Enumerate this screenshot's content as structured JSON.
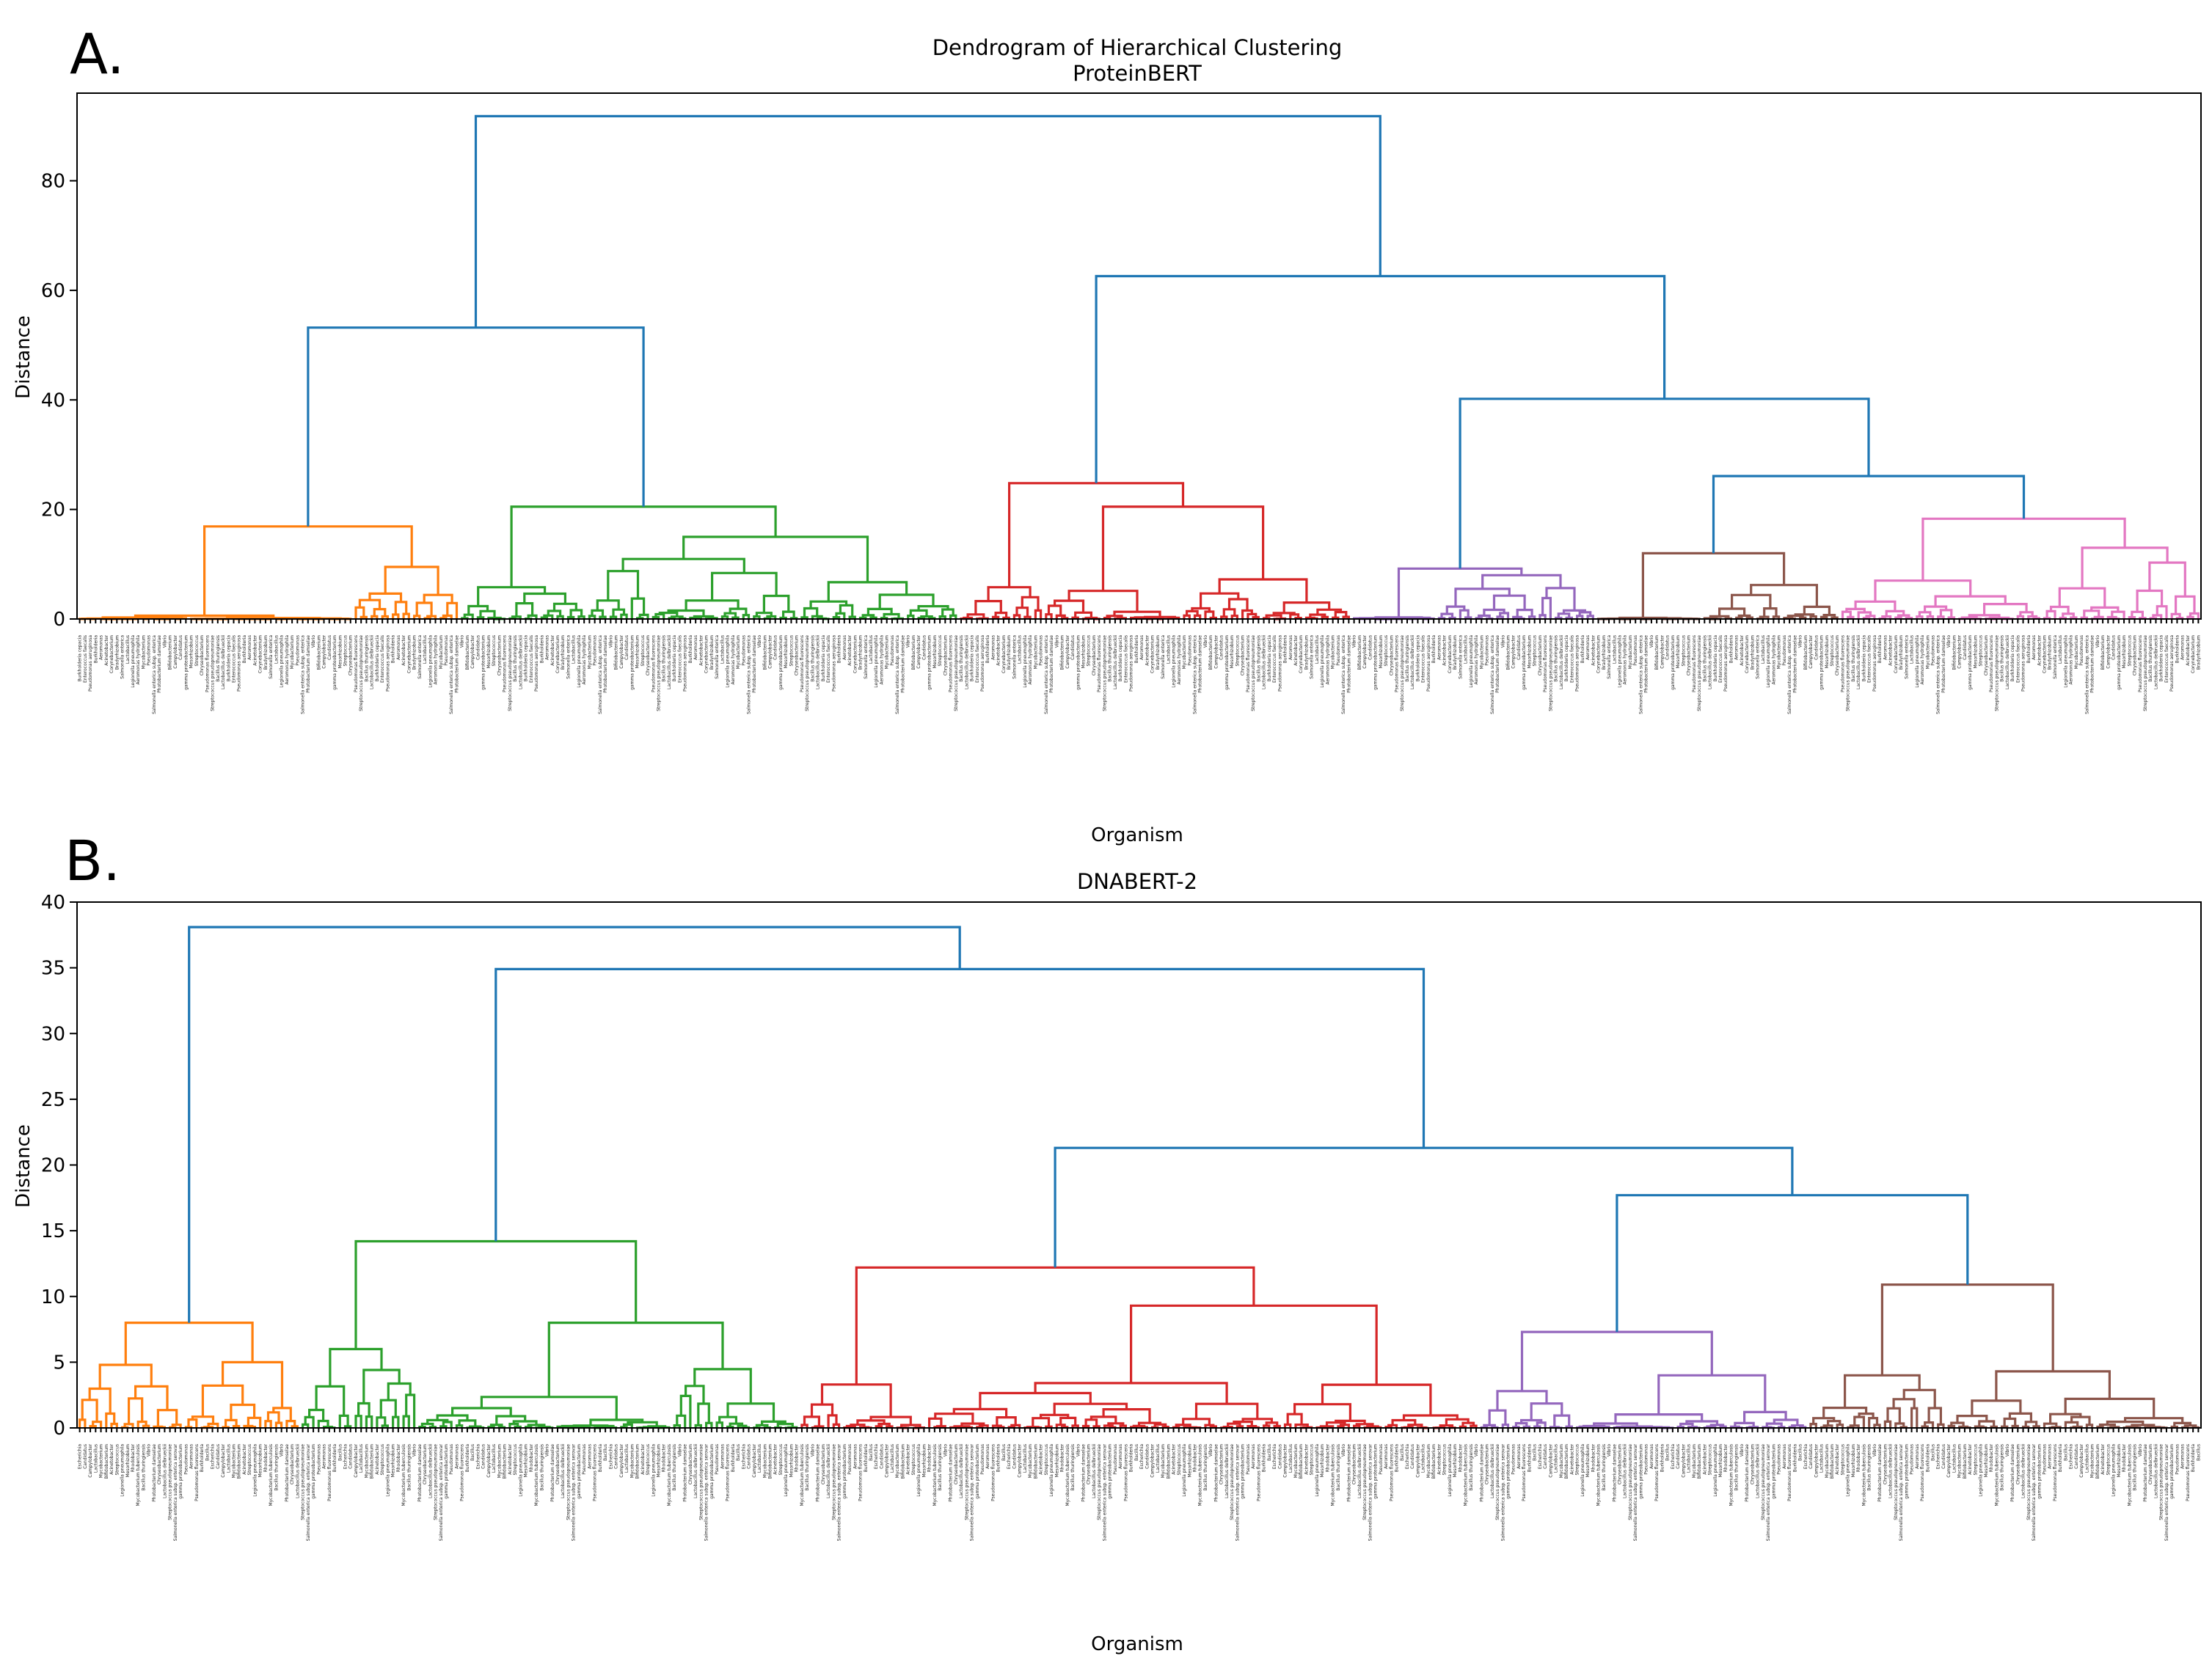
{
  "figure": {
    "panel_a_label": "A.",
    "panel_b_label": "B."
  },
  "chart_data": [
    {
      "type": "dendrogram",
      "title": "Dendrogram of Hierarchical Clustering",
      "subtitle": "ProteinBERT",
      "xlabel": "Organism",
      "ylabel": "Distance",
      "ylim": [
        0,
        96
      ],
      "yticks": [
        0,
        20,
        40,
        60,
        80
      ],
      "grid": false,
      "link_color_above_threshold": "#1f77b4",
      "leaf_count": 400,
      "clusters": [
        {
          "color": "#ff7f0e",
          "leaf_range": [
            0,
            72
          ],
          "max_height": 16.9,
          "subclusters": [
            {
              "leaf_range": [
                0,
                52
              ],
              "height": 0.6
            },
            {
              "leaf_range": [
                52,
                72
              ],
              "height": 9.5
            }
          ]
        },
        {
          "color": "#2ca02c",
          "leaf_range": [
            72,
            166
          ],
          "max_height": 20.5,
          "subclusters": [
            {
              "leaf_range": [
                72,
                96
              ],
              "height": 5.8
            },
            {
              "leaf_range": [
                96,
                166
              ],
              "height": 15.0
            }
          ]
        },
        {
          "color": "#d62728",
          "leaf_range": [
            166,
            240
          ],
          "max_height": 24.8,
          "subclusters": [
            {
              "leaf_range": [
                166,
                182
              ],
              "height": 5.8
            },
            {
              "leaf_range": [
                182,
                240
              ],
              "height": 20.5
            }
          ]
        },
        {
          "color": "#9467bd",
          "leaf_range": [
            240,
            286
          ],
          "max_height": 9.2,
          "subclusters": [
            {
              "leaf_range": [
                240,
                256
              ],
              "height": 0.3
            },
            {
              "leaf_range": [
                256,
                286
              ],
              "height": 8.0
            }
          ]
        },
        {
          "color": "#8c564b",
          "leaf_range": [
            286,
            332
          ],
          "max_height": 12.0,
          "subclusters": [
            {
              "leaf_range": [
                286,
                306
              ],
              "height": 0.2
            },
            {
              "leaf_range": [
                306,
                332
              ],
              "height": 6.2
            }
          ]
        },
        {
          "color": "#e377c2",
          "leaf_range": [
            332,
            400
          ],
          "max_height": 18.3,
          "subclusters": [
            {
              "leaf_range": [
                332,
                370
              ],
              "height": 7.0
            },
            {
              "leaf_range": [
                370,
                400
              ],
              "height": 13.0
            }
          ]
        }
      ],
      "upper_links": [
        {
          "children": [
            "orange",
            "green"
          ],
          "height": 53.2
        },
        {
          "children": [
            "brown",
            "pink"
          ],
          "height": 26.1
        },
        {
          "children": [
            "purple",
            "brown+pink"
          ],
          "height": 40.2
        },
        {
          "children": [
            "red",
            "purple+brown+pink"
          ],
          "height": 62.6
        },
        {
          "children": [
            "orange+green",
            "red+purple+brown+pink"
          ],
          "height": 91.8
        }
      ],
      "leaf_labels": [
        "Burkholderia cepacia",
        "Enterococcus faecalis",
        "Pseudomonas aeruginosa",
        "Burkholderia",
        "Aeromonas",
        "Acinetobacter",
        "Corynebacterium",
        "Bradyrhizobium",
        "Salmonella enterica",
        "Lactobacillus",
        "Legionella pneumophila",
        "Aeromonas hydrophila",
        "Mycobacterium",
        "Pseudomonas",
        "Salmonella enterica subsp. enterica",
        "Photobacterium damselae",
        "Vibrio",
        "Bifidobacterium",
        "Campylobacter",
        "Candidatus",
        "gamma proteobacterium",
        "Mesorhizobium",
        "Streptococcus",
        "Chryseobacterium",
        "Pseudomonas fluorescens",
        "Streptococcus pseudopneumoniae",
        "Bacillus thuringiensis",
        "Lactobacillus delbrueckii"
      ]
    },
    {
      "type": "dendrogram",
      "title": "DNABERT-2",
      "xlabel": "Organism",
      "ylabel": "Distance",
      "ylim": [
        0,
        40
      ],
      "yticks": [
        0,
        5,
        10,
        15,
        20,
        25,
        30,
        35,
        40
      ],
      "grid": false,
      "link_color_above_threshold": "#1f77b4",
      "leaf_count": 400,
      "clusters": [
        {
          "color": "#ff7f0e",
          "leaf_range": [
            0,
            42
          ],
          "max_height": 8.0,
          "subclusters": [
            {
              "leaf_range": [
                0,
                20
              ],
              "height": 4.8
            },
            {
              "leaf_range": [
                20,
                42
              ],
              "height": 5.0
            }
          ]
        },
        {
          "color": "#2ca02c",
          "leaf_range": [
            42,
            136
          ],
          "max_height": 14.2,
          "subclusters": [
            {
              "leaf_range": [
                42,
                64
              ],
              "height": 6.0
            },
            {
              "leaf_range": [
                64,
                136
              ],
              "height": 8.0
            }
          ]
        },
        {
          "color": "#d62728",
          "leaf_range": [
            136,
            264
          ],
          "max_height": 12.2,
          "subclusters": [
            {
              "leaf_range": [
                136,
                160
              ],
              "height": 3.3
            },
            {
              "leaf_range": [
                160,
                264
              ],
              "height": 9.3
            }
          ]
        },
        {
          "color": "#9467bd",
          "leaf_range": [
            264,
            326
          ],
          "max_height": 7.3,
          "subclusters": [
            {
              "leaf_range": [
                264,
                282
              ],
              "height": 2.8
            },
            {
              "leaf_range": [
                282,
                326
              ],
              "height": 4.0
            }
          ]
        },
        {
          "color": "#8c564b",
          "leaf_range": [
            326,
            400
          ],
          "max_height": 10.9,
          "subclusters": [
            {
              "leaf_range": [
                326,
                352
              ],
              "height": 4.0
            },
            {
              "leaf_range": [
                352,
                400
              ],
              "height": 4.3
            }
          ]
        }
      ],
      "upper_links": [
        {
          "children": [
            "purple",
            "brown"
          ],
          "height": 17.7
        },
        {
          "children": [
            "red",
            "purple+brown"
          ],
          "height": 21.3
        },
        {
          "children": [
            "green",
            "red+purple+brown"
          ],
          "height": 34.9
        },
        {
          "children": [
            "orange",
            "green+red+purple+brown"
          ],
          "height": 38.1
        }
      ],
      "leaf_labels": [
        "Escherichia",
        "Candidatus",
        "Campylobacter",
        "Lactobacillus",
        "Mycobacterium",
        "Bifidobacterium",
        "Acinetobacter",
        "Streptococcus",
        "Legionella pneumophila",
        "Mesorhizobium",
        "Rhodobacter",
        "Mycobacterium tuberculosis",
        "Bacillus thuringiensis",
        "Vibrio",
        "Photobacterium damselae",
        "Chryseobacterium",
        "Lactobacillus delbrueckii",
        "Streptococcus pseudopneumoniae",
        "Salmonella enterica subsp. enterica serovar",
        "gamma proteobacterium",
        "Pseudomonas",
        "Aeromonas",
        "Pseudomonas fluorescens",
        "Burkholderia",
        "Bacillus"
      ]
    }
  ]
}
